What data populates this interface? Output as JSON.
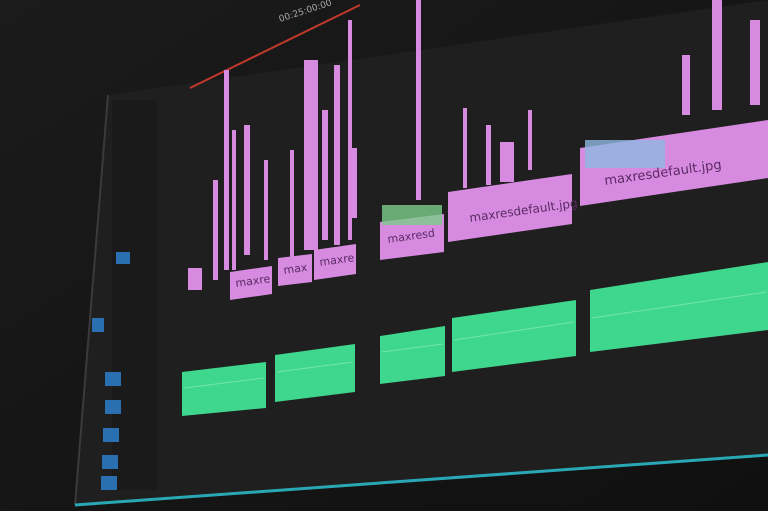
{
  "timecode": "00:25:00:00",
  "clips": [
    {
      "label": "maxre"
    },
    {
      "label": "max"
    },
    {
      "label": "maxre"
    },
    {
      "label": "maxresd"
    },
    {
      "label": "maxresdefault.jpg"
    },
    {
      "label": "maxresdefault.jpg"
    }
  ]
}
